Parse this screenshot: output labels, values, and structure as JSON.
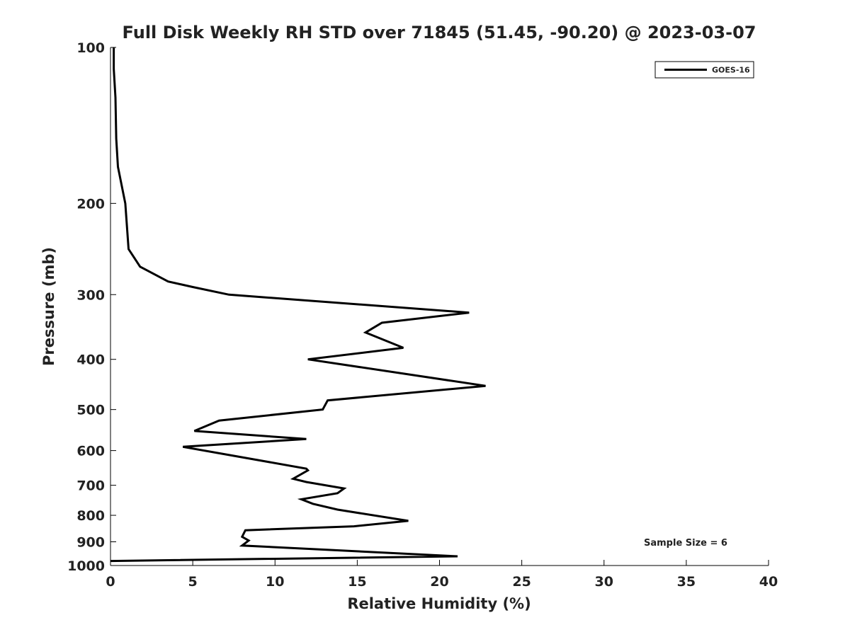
{
  "chart_data": {
    "type": "line",
    "title": "Full Disk Weekly RH STD over 71845 (51.45, -90.20) @ 2023-03-07",
    "xlabel": "Relative Humidity (%)",
    "ylabel": "Pressure (mb)",
    "xlim": [
      0,
      40
    ],
    "ylim": [
      100,
      1000
    ],
    "y_scale": "log",
    "y_reversed": true,
    "grid": false,
    "legend_position": "top-right",
    "x_ticks": [
      "0",
      "5",
      "10",
      "15",
      "20",
      "25",
      "30",
      "35",
      "40"
    ],
    "y_ticks": [
      "100",
      "200",
      "300",
      "400",
      "500",
      "600",
      "700",
      "800",
      "900",
      "1000"
    ],
    "series": [
      {
        "name": "GOES-16",
        "color": "#000000",
        "points": [
          [
            0.2,
            100
          ],
          [
            0.2,
            110
          ],
          [
            0.3,
            125
          ],
          [
            0.35,
            150
          ],
          [
            0.45,
            170
          ],
          [
            0.9,
            200
          ],
          [
            1.1,
            245
          ],
          [
            1.8,
            265
          ],
          [
            3.5,
            283
          ],
          [
            5.0,
            290
          ],
          [
            7.2,
            300
          ],
          [
            21.8,
            325
          ],
          [
            16.5,
            340
          ],
          [
            15.5,
            355
          ],
          [
            17.8,
            380
          ],
          [
            12.0,
            400
          ],
          [
            22.8,
            450
          ],
          [
            13.2,
            480
          ],
          [
            12.9,
            500
          ],
          [
            6.6,
            525
          ],
          [
            5.1,
            550
          ],
          [
            11.9,
            570
          ],
          [
            4.4,
            590
          ],
          [
            11.9,
            650
          ],
          [
            12.0,
            655
          ],
          [
            11.1,
            680
          ],
          [
            11.9,
            690
          ],
          [
            14.2,
            710
          ],
          [
            13.8,
            725
          ],
          [
            11.6,
            745
          ],
          [
            12.3,
            760
          ],
          [
            13.8,
            780
          ],
          [
            18.1,
            820
          ],
          [
            14.8,
            840
          ],
          [
            8.2,
            855
          ],
          [
            8.0,
            880
          ],
          [
            8.4,
            895
          ],
          [
            8.0,
            915
          ],
          [
            21.1,
            960
          ],
          [
            0.0,
            980
          ]
        ]
      }
    ],
    "annotation": "Sample Size = 6"
  }
}
